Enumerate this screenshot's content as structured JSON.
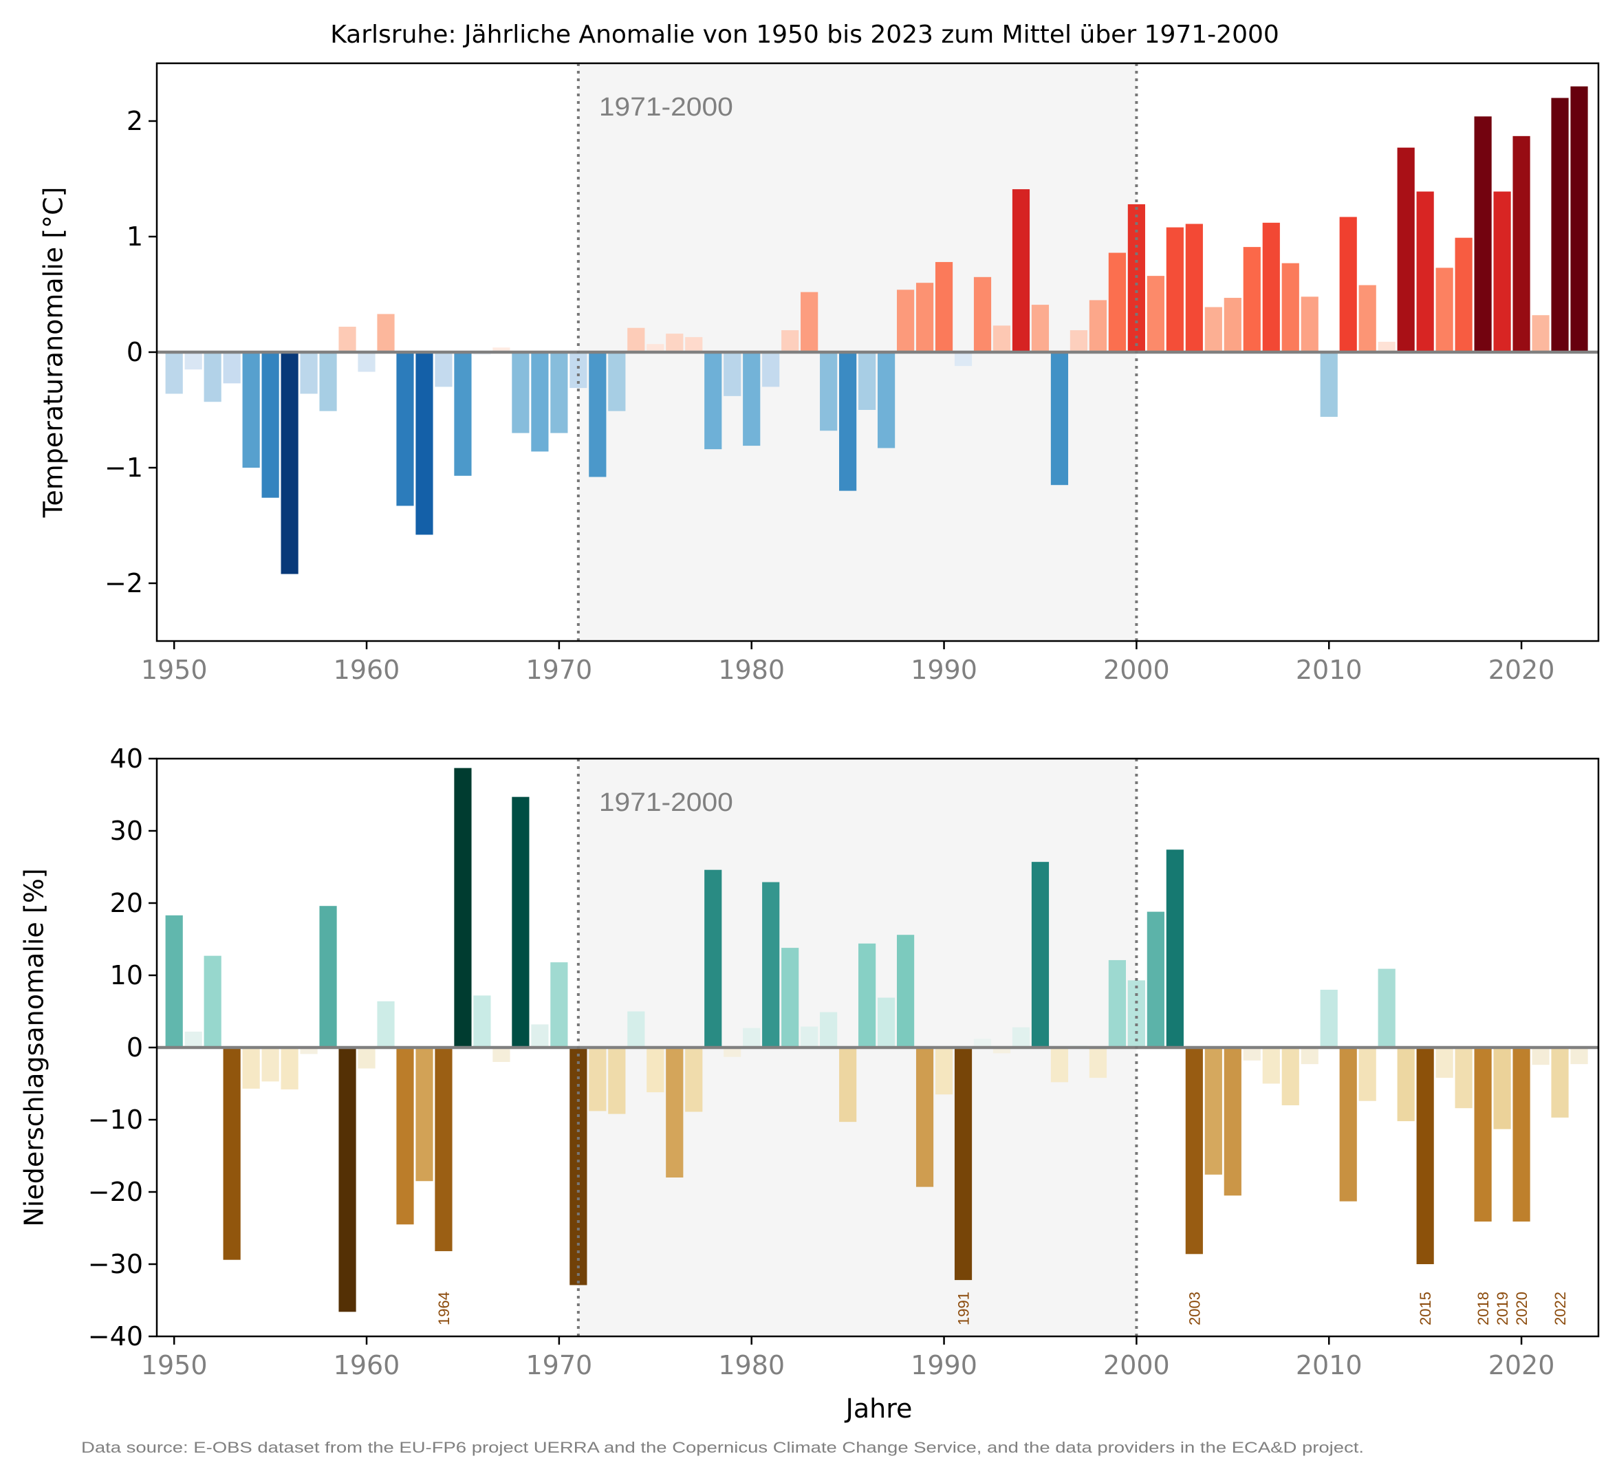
{
  "title": "Karlsruhe: Jährliche Anomalie von 1950 bis 2023 zum Mittel über 1971-2000",
  "xlabel": "Jahre",
  "source": "Data source: E-OBS dataset from the EU-FP6 project UERRA and the Copernicus Climate Change Service, and the data providers in the ECA&D project.",
  "reference_label": "1971-2000",
  "colors": {
    "reference_band": "#f5f5f5",
    "reference_lines": "#777777",
    "zero_line": "#808080",
    "tick_label": "#808080",
    "annotation": "#8b4a0b",
    "source_text": "#808080"
  },
  "chart_data": [
    {
      "type": "bar",
      "ylabel": "Temperaturanomalie [°C]",
      "ylim": [
        -2.5,
        2.5
      ],
      "yticks": [
        -2,
        -1,
        0,
        1,
        2
      ],
      "ytick_labels": [
        "−2",
        "−1",
        "0",
        "1",
        "2"
      ],
      "xlim": [
        1949.1,
        2024
      ],
      "xticks": [
        1950,
        1960,
        1970,
        1980,
        1990,
        2000,
        2010,
        2020
      ],
      "xtick_labels": [
        "1950",
        "1960",
        "1970",
        "1980",
        "1990",
        "2000",
        "2010",
        "2020"
      ],
      "reference_period": [
        1971,
        2000
      ],
      "colormap": "blue-red",
      "x": [
        1950,
        1951,
        1952,
        1953,
        1954,
        1955,
        1956,
        1957,
        1958,
        1959,
        1960,
        1961,
        1962,
        1963,
        1964,
        1965,
        1966,
        1967,
        1968,
        1969,
        1970,
        1971,
        1972,
        1973,
        1974,
        1975,
        1976,
        1977,
        1978,
        1979,
        1980,
        1981,
        1982,
        1983,
        1984,
        1985,
        1986,
        1987,
        1988,
        1989,
        1990,
        1991,
        1992,
        1993,
        1994,
        1995,
        1996,
        1997,
        1998,
        1999,
        2000,
        2001,
        2002,
        2003,
        2004,
        2005,
        2006,
        2007,
        2008,
        2009,
        2010,
        2011,
        2012,
        2013,
        2014,
        2015,
        2016,
        2017,
        2018,
        2019,
        2020,
        2021,
        2022,
        2023
      ],
      "values": [
        -0.36,
        -0.15,
        -0.43,
        -0.27,
        -1.0,
        -1.26,
        -1.92,
        -0.36,
        -0.51,
        0.22,
        -0.17,
        0.33,
        -1.33,
        -1.58,
        -0.3,
        -1.07,
        -0.02,
        0.04,
        -0.7,
        -0.86,
        -0.7,
        -0.31,
        -1.08,
        -0.51,
        0.21,
        0.07,
        0.16,
        0.13,
        -0.84,
        -0.38,
        -0.81,
        -0.3,
        0.19,
        0.52,
        -0.68,
        -1.2,
        -0.5,
        -0.83,
        0.54,
        0.6,
        0.78,
        -0.12,
        0.65,
        0.23,
        1.41,
        0.41,
        -1.15,
        0.19,
        0.45,
        0.86,
        1.28,
        0.66,
        1.08,
        1.11,
        0.39,
        0.47,
        0.91,
        1.12,
        0.77,
        0.48,
        -0.56,
        1.17,
        0.58,
        0.09,
        1.77,
        1.39,
        0.73,
        0.99,
        2.04,
        1.39,
        1.87,
        0.32,
        2.2,
        2.3
      ],
      "annotations": []
    },
    {
      "type": "bar",
      "ylabel": "Niederschlagsanomalie [%]",
      "ylim": [
        -40,
        40
      ],
      "yticks": [
        -40,
        -30,
        -20,
        -10,
        0,
        10,
        20,
        30,
        40
      ],
      "ytick_labels": [
        "−40",
        "−30",
        "−20",
        "−10",
        "0",
        "10",
        "20",
        "30",
        "40"
      ],
      "xlim": [
        1949.1,
        2024
      ],
      "xticks": [
        1950,
        1960,
        1970,
        1980,
        1990,
        2000,
        2010,
        2020
      ],
      "xtick_labels": [
        "1950",
        "1960",
        "1970",
        "1980",
        "1990",
        "2000",
        "2010",
        "2020"
      ],
      "reference_period": [
        1971,
        2000
      ],
      "colormap": "brown-teal",
      "x": [
        1950,
        1951,
        1952,
        1953,
        1954,
        1955,
        1956,
        1957,
        1958,
        1959,
        1960,
        1961,
        1962,
        1963,
        1964,
        1965,
        1966,
        1967,
        1968,
        1969,
        1970,
        1971,
        1972,
        1973,
        1974,
        1975,
        1976,
        1977,
        1978,
        1979,
        1980,
        1981,
        1982,
        1983,
        1984,
        1985,
        1986,
        1987,
        1988,
        1989,
        1990,
        1991,
        1992,
        1993,
        1994,
        1995,
        1996,
        1997,
        1998,
        1999,
        2000,
        2001,
        2002,
        2003,
        2004,
        2005,
        2006,
        2007,
        2008,
        2009,
        2010,
        2011,
        2012,
        2013,
        2014,
        2015,
        2016,
        2017,
        2018,
        2019,
        2020,
        2021,
        2022,
        2023
      ],
      "values": [
        18.3,
        2.2,
        12.7,
        -29.4,
        -5.7,
        -4.7,
        -5.8,
        -0.9,
        19.6,
        -36.6,
        -2.9,
        6.4,
        -24.5,
        -18.5,
        -28.2,
        38.7,
        7.2,
        -2.0,
        34.7,
        3.2,
        11.8,
        -32.9,
        -8.8,
        -9.2,
        5.0,
        -6.2,
        -18.0,
        -8.9,
        24.6,
        -1.3,
        2.7,
        22.9,
        13.8,
        2.9,
        4.9,
        -10.3,
        14.4,
        6.9,
        15.6,
        -19.3,
        -6.5,
        -32.2,
        1.2,
        -0.8,
        2.8,
        25.7,
        -4.8,
        0.3,
        -4.2,
        12.1,
        9.3,
        18.8,
        27.4,
        -28.6,
        -17.6,
        -20.5,
        -1.8,
        -5.0,
        -8.0,
        -2.3,
        8.0,
        -21.3,
        -7.4,
        10.9,
        -10.2,
        -30.0,
        -4.2,
        -8.4,
        -24.1,
        -11.3,
        -24.1,
        -2.4,
        -9.7,
        -2.3
      ],
      "annotations": [
        {
          "year": 1964,
          "label": "1964"
        },
        {
          "year": 1991,
          "label": "1991"
        },
        {
          "year": 2003,
          "label": "2003"
        },
        {
          "year": 2015,
          "label": "2015"
        },
        {
          "year": 2018,
          "label": "2018"
        },
        {
          "year": 2019,
          "label": "2019"
        },
        {
          "year": 2020,
          "label": "2020"
        },
        {
          "year": 2022,
          "label": "2022"
        }
      ]
    }
  ]
}
